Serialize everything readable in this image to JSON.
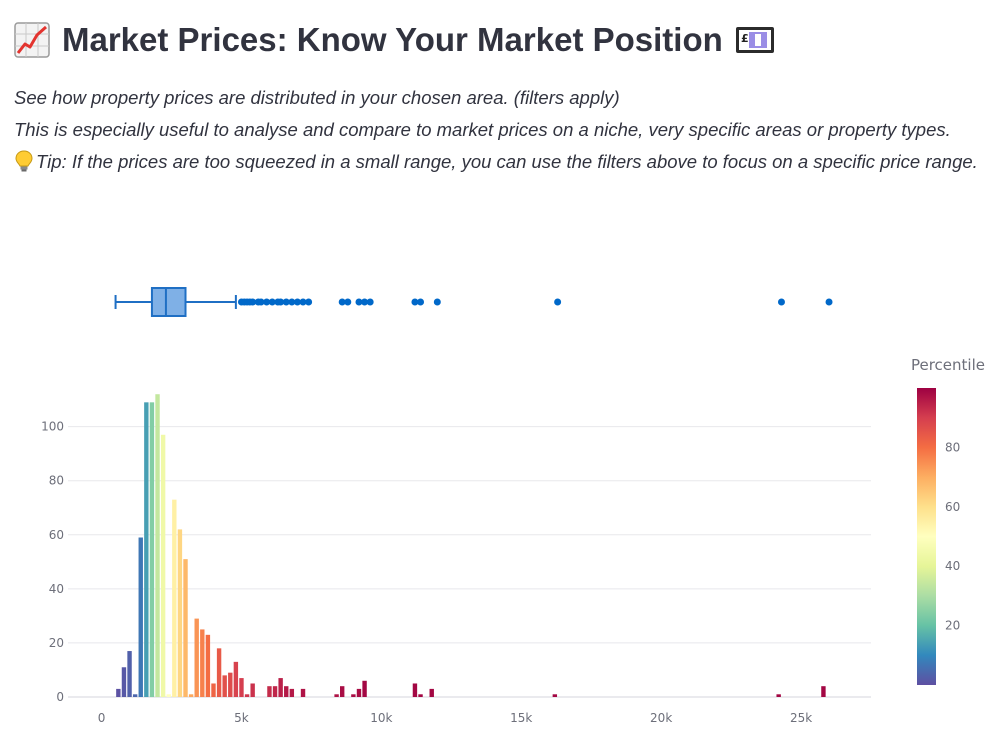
{
  "header": {
    "title": "Market Prices: Know Your Market Position",
    "icon_left": "chart-increasing-icon",
    "icon_right": "pound-banknote-icon"
  },
  "description": {
    "line1": "See how property prices are distributed in your chosen area. (filters apply)",
    "line2": "This is especially useful to analyse and compare to market prices on a niche, very specific areas or property types.",
    "tip_icon": "lightbulb-icon",
    "tip": "Tip: If the prices are too squeezed in a small range, you can use the filters above to focus on a specific price range."
  },
  "chart_data": {
    "type": "bar",
    "subtype": "histogram with marginal box plot",
    "xlim": [
      -1200,
      27500
    ],
    "ylim": [
      0,
      118
    ],
    "x_ticks": [
      0,
      5000,
      10000,
      15000,
      20000,
      25000
    ],
    "x_tick_labels": [
      "0",
      "5k",
      "10k",
      "15k",
      "20k",
      "25k"
    ],
    "y_ticks": [
      0,
      20,
      40,
      60,
      80,
      100
    ],
    "y_tick_labels": [
      "0",
      "20",
      "40",
      "60",
      "80",
      "100"
    ],
    "grid": true,
    "bin_width": 200,
    "bins": [
      {
        "x": 600,
        "count": 3,
        "percentile": 0.5
      },
      {
        "x": 800,
        "count": 11,
        "percentile": 1.5
      },
      {
        "x": 1000,
        "count": 17,
        "percentile": 3
      },
      {
        "x": 1200,
        "count": 1,
        "percentile": 4
      },
      {
        "x": 1400,
        "count": 59,
        "percentile": 7
      },
      {
        "x": 1600,
        "count": 109,
        "percentile": 14
      },
      {
        "x": 1800,
        "count": 109,
        "percentile": 24
      },
      {
        "x": 2000,
        "count": 112,
        "percentile": 34
      },
      {
        "x": 2200,
        "count": 97,
        "percentile": 44
      },
      {
        "x": 2400,
        "count": 1,
        "percentile": 50
      },
      {
        "x": 2600,
        "count": 73,
        "percentile": 55
      },
      {
        "x": 2800,
        "count": 62,
        "percentile": 62
      },
      {
        "x": 3000,
        "count": 51,
        "percentile": 68
      },
      {
        "x": 3200,
        "count": 1,
        "percentile": 71
      },
      {
        "x": 3400,
        "count": 29,
        "percentile": 74
      },
      {
        "x": 3600,
        "count": 25,
        "percentile": 77
      },
      {
        "x": 3800,
        "count": 23,
        "percentile": 80
      },
      {
        "x": 4000,
        "count": 5,
        "percentile": 82
      },
      {
        "x": 4200,
        "count": 18,
        "percentile": 84
      },
      {
        "x": 4400,
        "count": 8,
        "percentile": 86
      },
      {
        "x": 4600,
        "count": 9,
        "percentile": 87
      },
      {
        "x": 4800,
        "count": 13,
        "percentile": 89
      },
      {
        "x": 5000,
        "count": 7,
        "percentile": 90
      },
      {
        "x": 5200,
        "count": 1,
        "percentile": 91
      },
      {
        "x": 5400,
        "count": 5,
        "percentile": 92
      },
      {
        "x": 6000,
        "count": 4,
        "percentile": 93
      },
      {
        "x": 6200,
        "count": 4,
        "percentile": 94
      },
      {
        "x": 6400,
        "count": 7,
        "percentile": 95
      },
      {
        "x": 6600,
        "count": 4,
        "percentile": 96
      },
      {
        "x": 6800,
        "count": 3,
        "percentile": 96
      },
      {
        "x": 7200,
        "count": 3,
        "percentile": 97
      },
      {
        "x": 8400,
        "count": 1,
        "percentile": 97
      },
      {
        "x": 8600,
        "count": 4,
        "percentile": 98
      },
      {
        "x": 9000,
        "count": 1,
        "percentile": 98
      },
      {
        "x": 9200,
        "count": 3,
        "percentile": 98
      },
      {
        "x": 9400,
        "count": 6,
        "percentile": 99
      },
      {
        "x": 11200,
        "count": 5,
        "percentile": 99
      },
      {
        "x": 11400,
        "count": 1,
        "percentile": 99
      },
      {
        "x": 11800,
        "count": 3,
        "percentile": 99
      },
      {
        "x": 16200,
        "count": 1,
        "percentile": 99
      },
      {
        "x": 24200,
        "count": 1,
        "percentile": 99
      },
      {
        "x": 25800,
        "count": 4,
        "percentile": 99
      }
    ],
    "box": {
      "lower_fence": 500,
      "q1": 1800,
      "median": 2300,
      "q3": 3000,
      "upper_fence": 4800,
      "outliers": [
        5000,
        5100,
        5200,
        5300,
        5400,
        5600,
        5700,
        5900,
        6100,
        6300,
        6400,
        6600,
        6800,
        7000,
        7200,
        7400,
        8600,
        8800,
        9200,
        9400,
        9600,
        11200,
        11400,
        12000,
        16300,
        24300,
        26000
      ]
    },
    "colorbar": {
      "title": "Percentile",
      "tick_values": [
        20,
        40,
        60,
        80
      ],
      "tick_labels": [
        "20",
        "40",
        "60",
        "80"
      ],
      "range": [
        0,
        100
      ],
      "colorscale": "Spectral (reversed)"
    },
    "colors": {
      "box_line": "#1f6fc4",
      "box_fill": "#7fb0e6",
      "outlier": "#0068c9",
      "grid": "#e8e8ec",
      "axis_text": "#6d6f7a"
    }
  }
}
